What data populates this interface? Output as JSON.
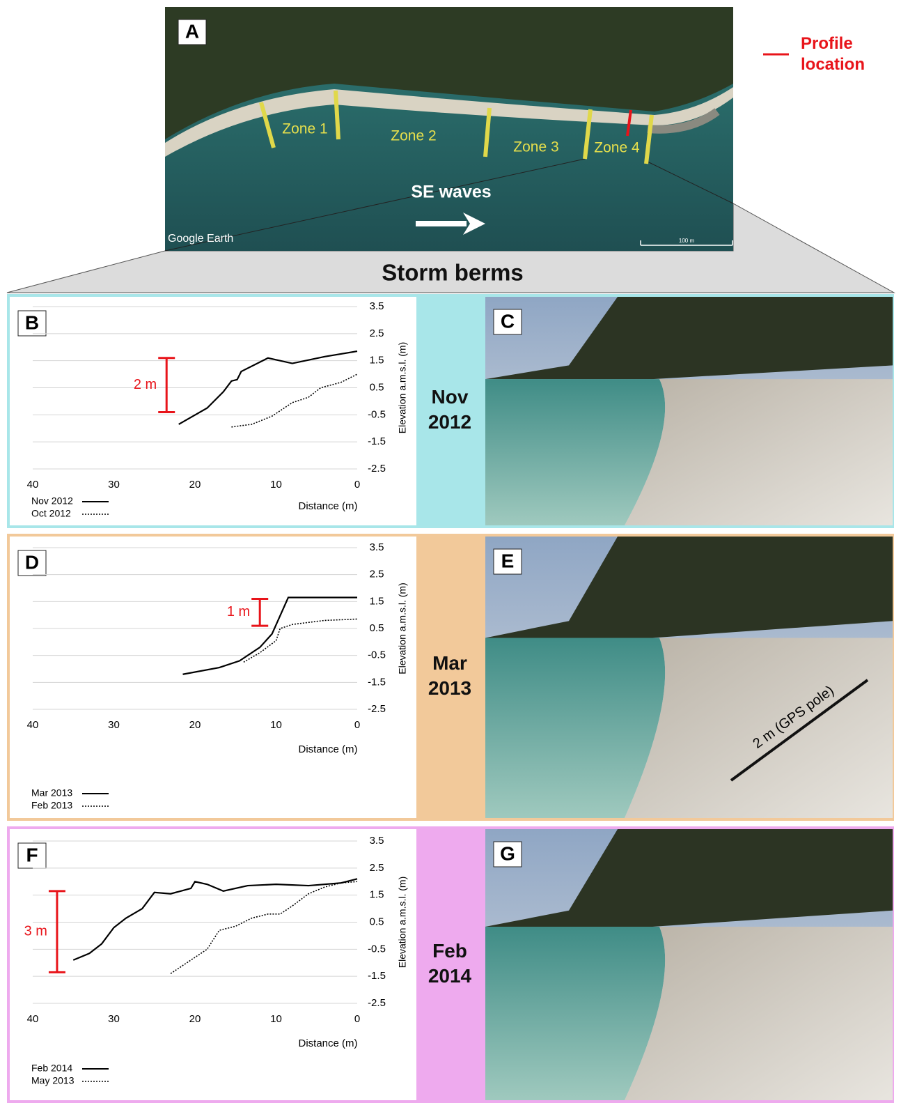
{
  "title": "Storm berms",
  "map": {
    "label": "A",
    "zones": [
      "Zone 1",
      "Zone 2",
      "Zone 3",
      "Zone 4"
    ],
    "waves": "SE waves",
    "credit": "Google Earth",
    "scale": "100 m",
    "legend": "Profile location",
    "legend_color": "#e8141a"
  },
  "photos": [
    {
      "label": "C"
    },
    {
      "label": "E",
      "annotation": "2 m (GPS pole)"
    },
    {
      "label": "G"
    }
  ],
  "chart_data": [
    {
      "type": "line",
      "label": "B",
      "period": "Nov 2012",
      "period_color": "#a8e6e9",
      "xlabel": "Distance (m)",
      "ylabel": "Elevation a.m.s.l. (m)",
      "xlim": [
        40,
        0
      ],
      "xticks": [
        40,
        30,
        20,
        10,
        0
      ],
      "ylim": [
        -2.5,
        3.5
      ],
      "yticks": [
        -2.5,
        -1.5,
        -0.5,
        0.5,
        1.5,
        2.5,
        3.5
      ],
      "grid": true,
      "annotation": {
        "text": "2 m",
        "x": 23.5,
        "range": [
          -0.4,
          1.6
        ],
        "color": "#e8141a"
      },
      "series": [
        {
          "name": "Nov 2012",
          "color": "#000000",
          "dashed": false,
          "x": [
            22,
            18.5,
            16.5,
            15.5,
            14.8,
            14.3,
            11,
            8,
            4,
            0
          ],
          "values": [
            -0.85,
            -0.25,
            0.35,
            0.75,
            0.8,
            1.1,
            1.6,
            1.4,
            1.65,
            1.85
          ]
        },
        {
          "name": "Oct 2012",
          "color": "#000000",
          "dashed": true,
          "x": [
            15.5,
            13,
            10.5,
            8,
            6,
            4.5,
            2,
            0
          ],
          "values": [
            -0.95,
            -0.85,
            -0.55,
            -0.05,
            0.15,
            0.5,
            0.7,
            1.0
          ]
        }
      ]
    },
    {
      "type": "line",
      "label": "D",
      "period": "Mar 2013",
      "period_color": "#f2c99a",
      "xlabel": "Distance (m)",
      "ylabel": "Elevation a.m.s.l. (m)",
      "xlim": [
        40,
        0
      ],
      "xticks": [
        40,
        30,
        20,
        10,
        0
      ],
      "ylim": [
        -2.5,
        3.5
      ],
      "yticks": [
        -2.5,
        -1.5,
        -0.5,
        0.5,
        1.5,
        2.5,
        3.5
      ],
      "grid": true,
      "annotation": {
        "text": "1 m",
        "x": 12,
        "range": [
          0.6,
          1.6
        ],
        "color": "#e8141a"
      },
      "series": [
        {
          "name": "Mar 2013",
          "color": "#000000",
          "dashed": false,
          "x": [
            21.5,
            17,
            14.5,
            12,
            10.5,
            8.5,
            4,
            0
          ],
          "values": [
            -1.2,
            -0.95,
            -0.7,
            -0.2,
            0.3,
            1.65,
            1.65,
            1.65
          ]
        },
        {
          "name": "Feb 2013",
          "color": "#000000",
          "dashed": true,
          "x": [
            14,
            12,
            10,
            9.5,
            8,
            4,
            0
          ],
          "values": [
            -0.75,
            -0.4,
            0.05,
            0.5,
            0.65,
            0.8,
            0.85
          ]
        }
      ]
    },
    {
      "type": "line",
      "label": "F",
      "period": "Feb 2014",
      "period_color": "#eeaaee",
      "xlabel": "Distance (m)",
      "ylabel": "Elevation a.m.s.l. (m)",
      "xlim": [
        40,
        0
      ],
      "xticks": [
        40,
        30,
        20,
        10,
        0
      ],
      "ylim": [
        -2.5,
        3.5
      ],
      "yticks": [
        -2.5,
        -1.5,
        -0.5,
        0.5,
        1.5,
        2.5,
        3.5
      ],
      "grid": true,
      "annotation": {
        "text": "3 m",
        "x": 37,
        "range": [
          -1.35,
          1.65
        ],
        "color": "#e8141a"
      },
      "series": [
        {
          "name": "Feb 2014",
          "color": "#000000",
          "dashed": false,
          "x": [
            35,
            33,
            31.5,
            30,
            28.5,
            26.5,
            25,
            23,
            20.5,
            20,
            18.5,
            16.5,
            13.5,
            10,
            6,
            2,
            0
          ],
          "values": [
            -0.9,
            -0.65,
            -0.3,
            0.3,
            0.65,
            1.0,
            1.6,
            1.55,
            1.75,
            2.0,
            1.9,
            1.65,
            1.85,
            1.9,
            1.85,
            1.95,
            2.1
          ]
        },
        {
          "name": "May 2013",
          "color": "#000000",
          "dashed": true,
          "x": [
            23,
            20.5,
            18.5,
            17,
            15,
            13,
            11,
            9.5,
            8,
            6,
            4,
            2,
            0
          ],
          "values": [
            -1.4,
            -0.9,
            -0.5,
            0.2,
            0.35,
            0.65,
            0.8,
            0.8,
            1.1,
            1.55,
            1.8,
            1.95,
            2.0
          ]
        }
      ]
    }
  ]
}
